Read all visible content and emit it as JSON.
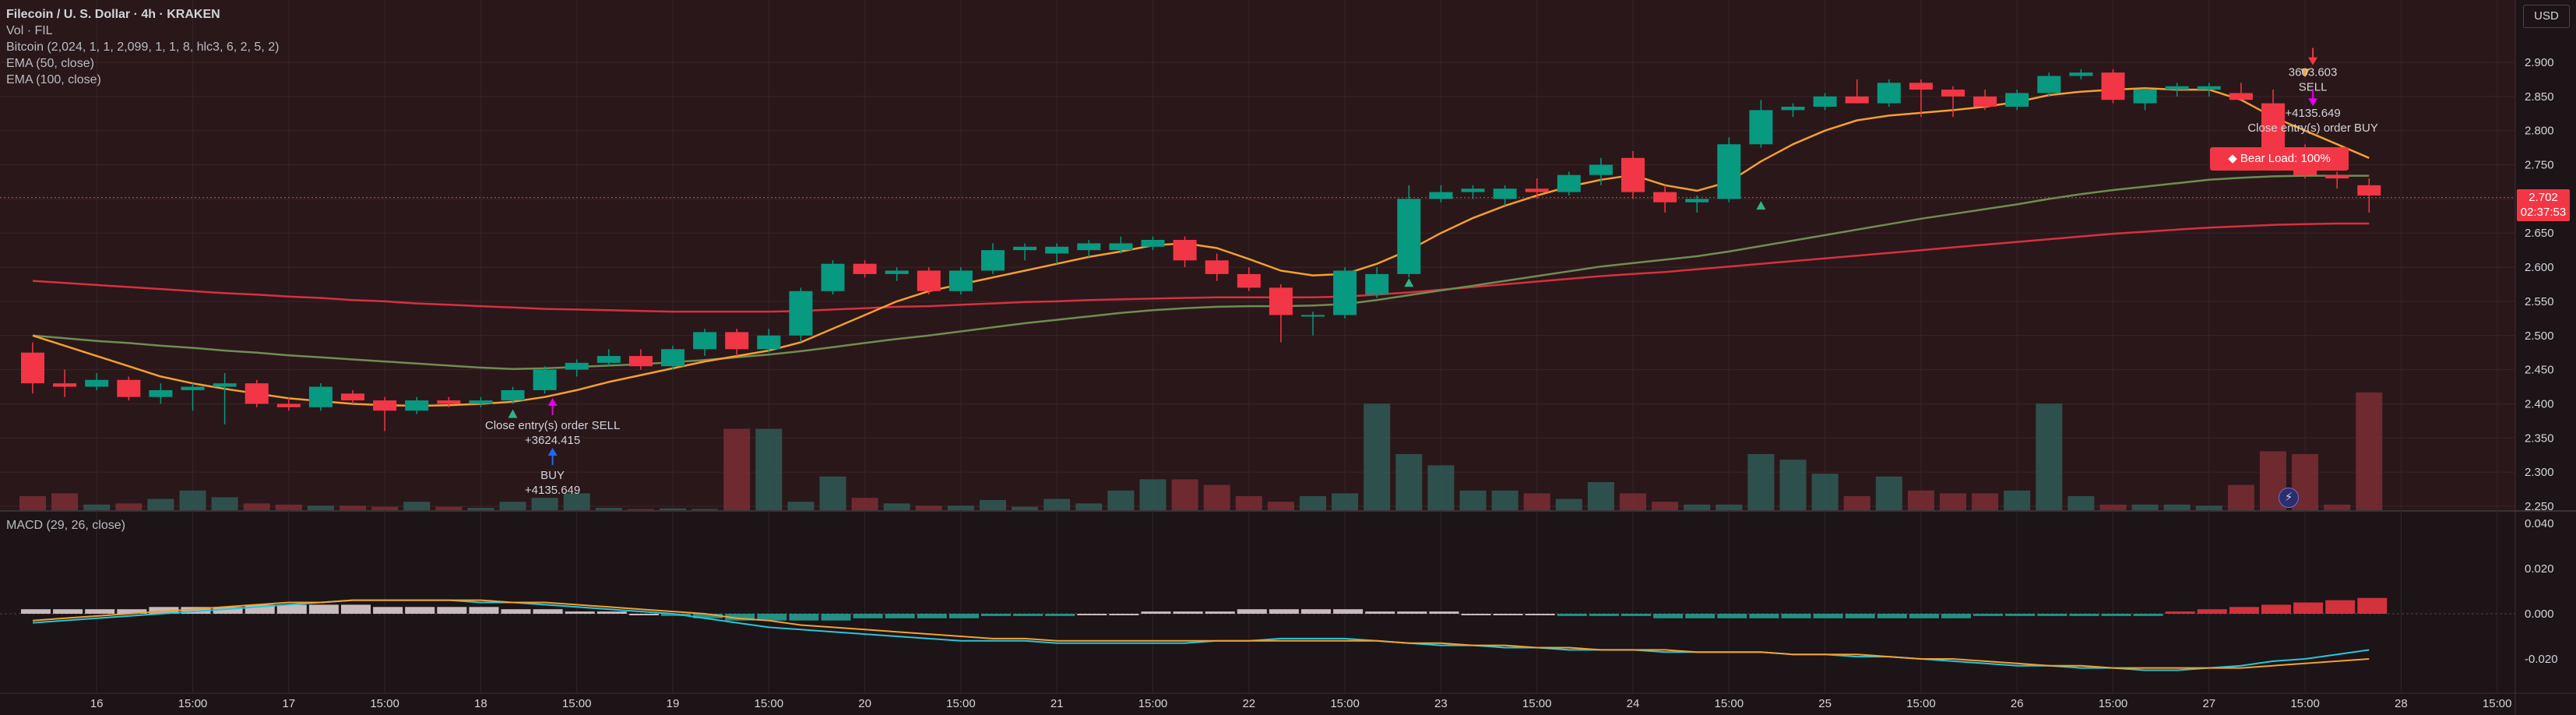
{
  "legend": {
    "title": "Filecoin / U. S. Dollar · 4h · KRAKEN",
    "volume": "Vol · FIL",
    "indicator": "Bitcoin (2,024, 1, 1, 2,099, 1, 1, 8, hlc3, 6, 2, 5, 2)",
    "ema50": "EMA (50, close)",
    "ema100": "EMA (100, close)",
    "macd": "MACD (29, 26, close)"
  },
  "currency": "USD",
  "last_price": {
    "value": "2.702",
    "countdown": "02:37:53"
  },
  "badge": {
    "text": "Bear Load: 100%"
  },
  "colors": {
    "up": "#089981",
    "down": "#f23645",
    "ema50": "#6e8d52",
    "ema100": "#d7303e",
    "signal": "#f3a030",
    "macd_line": "#26c6da",
    "bg": "#1c1416"
  },
  "chart_data": {
    "type": "candlestick",
    "price_axis": {
      "min": 2.25,
      "max": 2.9,
      "ticks": [
        "2.250",
        "2.300",
        "2.350",
        "2.400",
        "2.450",
        "2.500",
        "2.550",
        "2.600",
        "2.650",
        "2.700",
        "2.750",
        "2.800",
        "2.850",
        "2.900"
      ]
    },
    "macd_axis": {
      "min": -0.03,
      "max": 0.045,
      "ticks": [
        "-0.020",
        "0.000",
        "0.020",
        "0.040"
      ]
    },
    "x_ticks": [
      {
        "i": 2,
        "label": "16"
      },
      {
        "i": 5,
        "label": "15:00"
      },
      {
        "i": 8,
        "label": "17"
      },
      {
        "i": 11,
        "label": "15:00"
      },
      {
        "i": 14,
        "label": "18"
      },
      {
        "i": 17,
        "label": "15:00"
      },
      {
        "i": 20,
        "label": "19"
      },
      {
        "i": 23,
        "label": "15:00"
      },
      {
        "i": 26,
        "label": "20"
      },
      {
        "i": 29,
        "label": "15:00"
      },
      {
        "i": 32,
        "label": "21"
      },
      {
        "i": 35,
        "label": "15:00"
      },
      {
        "i": 38,
        "label": "22"
      },
      {
        "i": 41,
        "label": "15:00"
      },
      {
        "i": 44,
        "label": "23"
      },
      {
        "i": 47,
        "label": "15:00"
      },
      {
        "i": 50,
        "label": "24"
      },
      {
        "i": 53,
        "label": "15:00"
      },
      {
        "i": 56,
        "label": "25"
      },
      {
        "i": 59,
        "label": "15:00"
      },
      {
        "i": 62,
        "label": "26"
      },
      {
        "i": 65,
        "label": "15:00"
      },
      {
        "i": 68,
        "label": "27"
      },
      {
        "i": 71,
        "label": "15:00"
      },
      {
        "i": 74,
        "label": "28"
      },
      {
        "i": 77,
        "label": "15:00"
      }
    ],
    "candles": [
      {
        "o": 2.475,
        "h": 2.49,
        "l": 2.415,
        "c": 2.43,
        "v": 0.25
      },
      {
        "o": 2.43,
        "h": 2.45,
        "l": 2.41,
        "c": 2.425,
        "v": 0.3
      },
      {
        "o": 2.425,
        "h": 2.445,
        "l": 2.42,
        "c": 2.435,
        "v": 0.1
      },
      {
        "o": 2.435,
        "h": 2.44,
        "l": 2.405,
        "c": 2.41,
        "v": 0.12
      },
      {
        "o": 2.41,
        "h": 2.43,
        "l": 2.4,
        "c": 2.42,
        "v": 0.2
      },
      {
        "o": 2.42,
        "h": 2.43,
        "l": 2.39,
        "c": 2.425,
        "v": 0.35
      },
      {
        "o": 2.425,
        "h": 2.445,
        "l": 2.37,
        "c": 2.43,
        "v": 0.23
      },
      {
        "o": 2.43,
        "h": 2.435,
        "l": 2.395,
        "c": 2.4,
        "v": 0.12
      },
      {
        "o": 2.4,
        "h": 2.41,
        "l": 2.39,
        "c": 2.395,
        "v": 0.1
      },
      {
        "o": 2.395,
        "h": 2.43,
        "l": 2.39,
        "c": 2.425,
        "v": 0.08
      },
      {
        "o": 2.415,
        "h": 2.42,
        "l": 2.4,
        "c": 2.405,
        "v": 0.08
      },
      {
        "o": 2.405,
        "h": 2.41,
        "l": 2.36,
        "c": 2.39,
        "v": 0.06
      },
      {
        "o": 2.39,
        "h": 2.41,
        "l": 2.385,
        "c": 2.405,
        "v": 0.15
      },
      {
        "o": 2.405,
        "h": 2.41,
        "l": 2.395,
        "c": 2.4,
        "v": 0.06
      },
      {
        "o": 2.4,
        "h": 2.41,
        "l": 2.395,
        "c": 2.405,
        "v": 0.04
      },
      {
        "o": 2.405,
        "h": 2.425,
        "l": 2.4,
        "c": 2.42,
        "v": 0.15
      },
      {
        "o": 2.42,
        "h": 2.455,
        "l": 2.415,
        "c": 2.45,
        "v": 0.22
      },
      {
        "o": 2.45,
        "h": 2.465,
        "l": 2.44,
        "c": 2.46,
        "v": 0.3
      },
      {
        "o": 2.46,
        "h": 2.48,
        "l": 2.455,
        "c": 2.47,
        "v": 0.04
      },
      {
        "o": 2.47,
        "h": 2.48,
        "l": 2.45,
        "c": 2.455,
        "v": 0.02
      },
      {
        "o": 2.455,
        "h": 2.485,
        "l": 2.45,
        "c": 2.48,
        "v": 0.03
      },
      {
        "o": 2.48,
        "h": 2.51,
        "l": 2.47,
        "c": 2.505,
        "v": 0.02
      },
      {
        "o": 2.505,
        "h": 2.51,
        "l": 2.47,
        "c": 2.48,
        "v": 1.45
      },
      {
        "o": 2.48,
        "h": 2.51,
        "l": 2.475,
        "c": 2.5,
        "v": 1.45
      },
      {
        "o": 2.5,
        "h": 2.57,
        "l": 2.49,
        "c": 2.565,
        "v": 0.15
      },
      {
        "o": 2.565,
        "h": 2.61,
        "l": 2.56,
        "c": 2.605,
        "v": 0.6
      },
      {
        "o": 2.605,
        "h": 2.61,
        "l": 2.585,
        "c": 2.59,
        "v": 0.22
      },
      {
        "o": 2.59,
        "h": 2.6,
        "l": 2.58,
        "c": 2.595,
        "v": 0.12
      },
      {
        "o": 2.595,
        "h": 2.6,
        "l": 2.56,
        "c": 2.565,
        "v": 0.08
      },
      {
        "o": 2.565,
        "h": 2.6,
        "l": 2.56,
        "c": 2.595,
        "v": 0.08
      },
      {
        "o": 2.595,
        "h": 2.635,
        "l": 2.59,
        "c": 2.625,
        "v": 0.18
      },
      {
        "o": 2.625,
        "h": 2.635,
        "l": 2.61,
        "c": 2.63,
        "v": 0.06
      },
      {
        "o": 2.62,
        "h": 2.635,
        "l": 2.605,
        "c": 2.63,
        "v": 0.2
      },
      {
        "o": 2.625,
        "h": 2.64,
        "l": 2.615,
        "c": 2.635,
        "v": 0.12
      },
      {
        "o": 2.625,
        "h": 2.645,
        "l": 2.62,
        "c": 2.635,
        "v": 0.35
      },
      {
        "o": 2.63,
        "h": 2.645,
        "l": 2.625,
        "c": 2.64,
        "v": 0.55
      },
      {
        "o": 2.64,
        "h": 2.645,
        "l": 2.6,
        "c": 2.61,
        "v": 0.55
      },
      {
        "o": 2.61,
        "h": 2.62,
        "l": 2.58,
        "c": 2.59,
        "v": 0.45
      },
      {
        "o": 2.59,
        "h": 2.6,
        "l": 2.565,
        "c": 2.57,
        "v": 0.25
      },
      {
        "o": 2.57,
        "h": 2.575,
        "l": 2.49,
        "c": 2.53,
        "v": 0.15
      },
      {
        "o": 2.53,
        "h": 2.535,
        "l": 2.5,
        "c": 2.53,
        "v": 0.25
      },
      {
        "o": 2.53,
        "h": 2.6,
        "l": 2.525,
        "c": 2.595,
        "v": 0.3
      },
      {
        "o": 2.56,
        "h": 2.6,
        "l": 2.555,
        "c": 2.59,
        "v": 1.9
      },
      {
        "o": 2.59,
        "h": 2.72,
        "l": 2.585,
        "c": 2.7,
        "v": 1.0
      },
      {
        "o": 2.7,
        "h": 2.72,
        "l": 2.695,
        "c": 2.71,
        "v": 0.8
      },
      {
        "o": 2.71,
        "h": 2.72,
        "l": 2.7,
        "c": 2.715,
        "v": 0.35
      },
      {
        "o": 2.7,
        "h": 2.72,
        "l": 2.69,
        "c": 2.715,
        "v": 0.35
      },
      {
        "o": 2.715,
        "h": 2.73,
        "l": 2.7,
        "c": 2.71,
        "v": 0.3
      },
      {
        "o": 2.71,
        "h": 2.74,
        "l": 2.705,
        "c": 2.735,
        "v": 0.2
      },
      {
        "o": 2.735,
        "h": 2.76,
        "l": 2.72,
        "c": 2.75,
        "v": 0.5
      },
      {
        "o": 2.76,
        "h": 2.77,
        "l": 2.7,
        "c": 2.71,
        "v": 0.3
      },
      {
        "o": 2.71,
        "h": 2.72,
        "l": 2.68,
        "c": 2.695,
        "v": 0.15
      },
      {
        "o": 2.695,
        "h": 2.705,
        "l": 2.68,
        "c": 2.7,
        "v": 0.1
      },
      {
        "o": 2.7,
        "h": 2.79,
        "l": 2.695,
        "c": 2.78,
        "v": 0.1
      },
      {
        "o": 2.78,
        "h": 2.845,
        "l": 2.775,
        "c": 2.83,
        "v": 1.0
      },
      {
        "o": 2.83,
        "h": 2.84,
        "l": 2.82,
        "c": 2.835,
        "v": 0.9
      },
      {
        "o": 2.835,
        "h": 2.855,
        "l": 2.83,
        "c": 2.85,
        "v": 0.65
      },
      {
        "o": 2.85,
        "h": 2.875,
        "l": 2.84,
        "c": 2.84,
        "v": 0.25
      },
      {
        "o": 2.84,
        "h": 2.875,
        "l": 2.835,
        "c": 2.87,
        "v": 0.6
      },
      {
        "o": 2.87,
        "h": 2.875,
        "l": 2.82,
        "c": 2.86,
        "v": 0.35
      },
      {
        "o": 2.86,
        "h": 2.865,
        "l": 2.82,
        "c": 2.85,
        "v": 0.3
      },
      {
        "o": 2.85,
        "h": 2.86,
        "l": 2.83,
        "c": 2.835,
        "v": 0.3
      },
      {
        "o": 2.835,
        "h": 2.86,
        "l": 2.83,
        "c": 2.855,
        "v": 0.35
      },
      {
        "o": 2.855,
        "h": 2.885,
        "l": 2.85,
        "c": 2.88,
        "v": 1.9
      },
      {
        "o": 2.88,
        "h": 2.89,
        "l": 2.875,
        "c": 2.885,
        "v": 0.25
      },
      {
        "o": 2.885,
        "h": 2.89,
        "l": 2.84,
        "c": 2.845,
        "v": 0.1
      },
      {
        "o": 2.84,
        "h": 2.86,
        "l": 2.83,
        "c": 2.86,
        "v": 0.1
      },
      {
        "o": 2.86,
        "h": 2.87,
        "l": 2.85,
        "c": 2.865,
        "v": 0.1
      },
      {
        "o": 2.86,
        "h": 2.87,
        "l": 2.85,
        "c": 2.865,
        "v": 0.08
      },
      {
        "o": 2.855,
        "h": 2.87,
        "l": 2.845,
        "c": 2.845,
        "v": 0.45
      },
      {
        "o": 2.84,
        "h": 2.86,
        "l": 2.76,
        "c": 2.77,
        "v": 1.05
      },
      {
        "o": 2.77,
        "h": 2.78,
        "l": 2.73,
        "c": 2.735,
        "v": 1.0
      },
      {
        "o": 2.735,
        "h": 2.74,
        "l": 2.715,
        "c": 2.73,
        "v": 0.1
      },
      {
        "o": 2.72,
        "h": 2.73,
        "l": 2.68,
        "c": 2.705,
        "v": 2.1
      }
    ],
    "ema50": [
      2.5,
      2.496,
      2.492,
      2.489,
      2.485,
      2.482,
      2.478,
      2.475,
      2.471,
      2.468,
      2.465,
      2.462,
      2.459,
      2.456,
      2.453,
      2.451,
      2.452,
      2.454,
      2.456,
      2.458,
      2.461,
      2.464,
      2.468,
      2.472,
      2.477,
      2.483,
      2.489,
      2.495,
      2.5,
      2.506,
      2.512,
      2.518,
      2.523,
      2.528,
      2.533,
      2.537,
      2.54,
      2.542,
      2.543,
      2.543,
      2.544,
      2.546,
      2.552,
      2.559,
      2.566,
      2.573,
      2.58,
      2.587,
      2.594,
      2.601,
      2.606,
      2.611,
      2.616,
      2.623,
      2.631,
      2.639,
      2.647,
      2.655,
      2.663,
      2.671,
      2.678,
      2.685,
      2.692,
      2.7,
      2.707,
      2.713,
      2.718,
      2.723,
      2.728,
      2.731,
      2.733,
      2.734,
      2.734,
      2.734
    ],
    "ema100": [
      2.58,
      2.577,
      2.574,
      2.571,
      2.568,
      2.565,
      2.562,
      2.56,
      2.557,
      2.555,
      2.552,
      2.55,
      2.547,
      2.545,
      2.543,
      2.541,
      2.539,
      2.538,
      2.537,
      2.536,
      2.535,
      2.535,
      2.535,
      2.535,
      2.536,
      2.538,
      2.54,
      2.542,
      2.543,
      2.545,
      2.547,
      2.549,
      2.55,
      2.552,
      2.553,
      2.554,
      2.555,
      2.556,
      2.556,
      2.556,
      2.556,
      2.557,
      2.56,
      2.563,
      2.567,
      2.571,
      2.575,
      2.579,
      2.583,
      2.587,
      2.59,
      2.593,
      2.597,
      2.601,
      2.605,
      2.609,
      2.613,
      2.617,
      2.621,
      2.625,
      2.629,
      2.633,
      2.637,
      2.641,
      2.645,
      2.649,
      2.652,
      2.655,
      2.658,
      2.66,
      2.662,
      2.663,
      2.664,
      2.664
    ],
    "signal_line": [
      2.5,
      2.485,
      2.47,
      2.455,
      2.44,
      2.43,
      2.422,
      2.415,
      2.408,
      2.404,
      2.4,
      2.398,
      2.397,
      2.398,
      2.4,
      2.403,
      2.41,
      2.42,
      2.432,
      2.442,
      2.452,
      2.462,
      2.47,
      2.478,
      2.49,
      2.51,
      2.53,
      2.55,
      2.565,
      2.575,
      2.585,
      2.595,
      2.605,
      2.615,
      2.623,
      2.632,
      2.635,
      2.628,
      2.612,
      2.595,
      2.588,
      2.59,
      2.605,
      2.625,
      2.65,
      2.672,
      2.69,
      2.705,
      2.718,
      2.728,
      2.735,
      2.72,
      2.712,
      2.725,
      2.755,
      2.78,
      2.8,
      2.815,
      2.822,
      2.826,
      2.83,
      2.835,
      2.842,
      2.852,
      2.857,
      2.86,
      2.862,
      2.86,
      2.86,
      2.845,
      2.82,
      2.8,
      2.78,
      2.76
    ],
    "macd_histogram": [
      0.002,
      0.002,
      0.002,
      0.002,
      0.003,
      0.003,
      0.003,
      0.004,
      0.004,
      0.004,
      0.004,
      0.003,
      0.003,
      0.003,
      0.003,
      0.002,
      0.002,
      0.001,
      0.001,
      0.0,
      -0.001,
      -0.002,
      -0.003,
      -0.003,
      -0.003,
      -0.003,
      -0.002,
      -0.002,
      -0.002,
      -0.002,
      -0.001,
      -0.001,
      -0.001,
      0.0,
      0.0,
      0.001,
      0.001,
      0.001,
      0.002,
      0.002,
      0.002,
      0.002,
      0.001,
      0.001,
      0.001,
      0.0,
      0.0,
      0.0,
      -0.001,
      -0.001,
      -0.001,
      -0.002,
      -0.002,
      -0.002,
      -0.002,
      -0.002,
      -0.002,
      -0.002,
      -0.002,
      -0.002,
      -0.002,
      -0.001,
      -0.001,
      -0.001,
      -0.001,
      -0.001,
      -0.001,
      0.001,
      0.002,
      0.003,
      0.004,
      0.005,
      0.006,
      0.007
    ],
    "macd_line": [
      -0.004,
      -0.003,
      -0.002,
      -0.001,
      0.0,
      0.001,
      0.002,
      0.003,
      0.004,
      0.005,
      0.006,
      0.006,
      0.006,
      0.006,
      0.005,
      0.005,
      0.004,
      0.003,
      0.002,
      0.001,
      0.0,
      -0.002,
      -0.004,
      -0.006,
      -0.007,
      -0.008,
      -0.009,
      -0.01,
      -0.011,
      -0.012,
      -0.012,
      -0.012,
      -0.013,
      -0.013,
      -0.013,
      -0.013,
      -0.013,
      -0.012,
      -0.012,
      -0.011,
      -0.011,
      -0.011,
      -0.012,
      -0.013,
      -0.014,
      -0.014,
      -0.015,
      -0.015,
      -0.016,
      -0.016,
      -0.016,
      -0.017,
      -0.017,
      -0.017,
      -0.017,
      -0.018,
      -0.018,
      -0.019,
      -0.019,
      -0.02,
      -0.021,
      -0.022,
      -0.023,
      -0.023,
      -0.024,
      -0.024,
      -0.025,
      -0.025,
      -0.024,
      -0.023,
      -0.021,
      -0.02,
      -0.018,
      -0.016
    ],
    "macd_signal": [
      -0.003,
      -0.002,
      -0.001,
      0.0,
      0.001,
      0.002,
      0.003,
      0.004,
      0.005,
      0.005,
      0.006,
      0.006,
      0.006,
      0.006,
      0.006,
      0.005,
      0.005,
      0.004,
      0.003,
      0.002,
      0.001,
      0.0,
      -0.002,
      -0.003,
      -0.005,
      -0.006,
      -0.007,
      -0.008,
      -0.009,
      -0.01,
      -0.011,
      -0.011,
      -0.012,
      -0.012,
      -0.012,
      -0.012,
      -0.012,
      -0.012,
      -0.012,
      -0.012,
      -0.012,
      -0.012,
      -0.012,
      -0.013,
      -0.013,
      -0.014,
      -0.014,
      -0.015,
      -0.015,
      -0.016,
      -0.016,
      -0.016,
      -0.017,
      -0.017,
      -0.017,
      -0.018,
      -0.018,
      -0.018,
      -0.019,
      -0.02,
      -0.02,
      -0.021,
      -0.022,
      -0.023,
      -0.023,
      -0.024,
      -0.024,
      -0.024,
      -0.024,
      -0.024,
      -0.023,
      -0.022,
      -0.021,
      -0.02
    ],
    "annotations": [
      {
        "i": 16,
        "price": 2.388,
        "lines": [
          "Close entry(s) order SELL",
          "+3624.415"
        ],
        "arrow": "up",
        "color": "#e100e8"
      },
      {
        "i": 16,
        "price": 2.315,
        "lines": [
          "BUY",
          "+4135.649"
        ],
        "arrow": "up",
        "color": "#2962ff"
      },
      {
        "i": 71,
        "price": 2.905,
        "lines": [
          "3603.603",
          "SELL"
        ],
        "arrow": "down",
        "color": "#f23645"
      },
      {
        "i": 71,
        "price": 2.845,
        "lines": [
          "+4135.649",
          "Close entry(s) order BUY"
        ],
        "arrow": "down",
        "color": "#e100e8"
      }
    ],
    "markers": [
      {
        "i": 15,
        "price": 2.385,
        "dir": "up"
      },
      {
        "i": 43,
        "price": 2.577,
        "dir": "up"
      },
      {
        "i": 54,
        "price": 2.69,
        "dir": "up"
      },
      {
        "i": 71,
        "price": 2.885,
        "dir": "down"
      }
    ]
  }
}
